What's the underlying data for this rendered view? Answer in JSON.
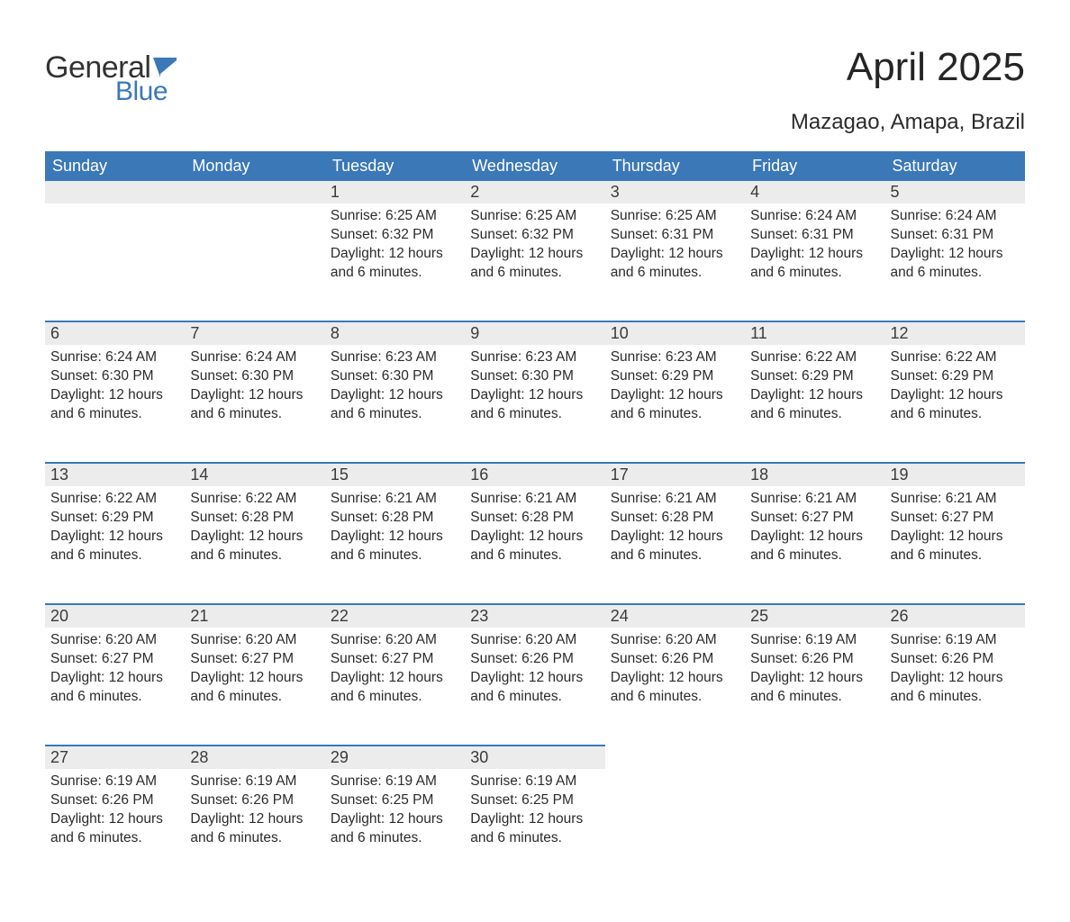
{
  "logo": {
    "word1": "General",
    "word2": "Blue",
    "flag_color": "#3b78b8",
    "word1_color": "#333333",
    "word2_color": "#3b78b8"
  },
  "title": "April 2025",
  "location": "Mazagao, Amapa, Brazil",
  "colors": {
    "header_bg": "#3b78b8",
    "header_text": "#ffffff",
    "daynum_bg": "#ececec",
    "border_top": "#3b78b8",
    "body_text": "#2b2b2b",
    "page_bg": "#ffffff"
  },
  "weekdays": [
    "Sunday",
    "Monday",
    "Tuesday",
    "Wednesday",
    "Thursday",
    "Friday",
    "Saturday"
  ],
  "weeks": [
    [
      {
        "blank": true
      },
      {
        "blank": true
      },
      {
        "day": "1",
        "sunrise": "Sunrise: 6:25 AM",
        "sunset": "Sunset: 6:32 PM",
        "daylight1": "Daylight: 12 hours",
        "daylight2": "and 6 minutes."
      },
      {
        "day": "2",
        "sunrise": "Sunrise: 6:25 AM",
        "sunset": "Sunset: 6:32 PM",
        "daylight1": "Daylight: 12 hours",
        "daylight2": "and 6 minutes."
      },
      {
        "day": "3",
        "sunrise": "Sunrise: 6:25 AM",
        "sunset": "Sunset: 6:31 PM",
        "daylight1": "Daylight: 12 hours",
        "daylight2": "and 6 minutes."
      },
      {
        "day": "4",
        "sunrise": "Sunrise: 6:24 AM",
        "sunset": "Sunset: 6:31 PM",
        "daylight1": "Daylight: 12 hours",
        "daylight2": "and 6 minutes."
      },
      {
        "day": "5",
        "sunrise": "Sunrise: 6:24 AM",
        "sunset": "Sunset: 6:31 PM",
        "daylight1": "Daylight: 12 hours",
        "daylight2": "and 6 minutes."
      }
    ],
    [
      {
        "day": "6",
        "sunrise": "Sunrise: 6:24 AM",
        "sunset": "Sunset: 6:30 PM",
        "daylight1": "Daylight: 12 hours",
        "daylight2": "and 6 minutes."
      },
      {
        "day": "7",
        "sunrise": "Sunrise: 6:24 AM",
        "sunset": "Sunset: 6:30 PM",
        "daylight1": "Daylight: 12 hours",
        "daylight2": "and 6 minutes."
      },
      {
        "day": "8",
        "sunrise": "Sunrise: 6:23 AM",
        "sunset": "Sunset: 6:30 PM",
        "daylight1": "Daylight: 12 hours",
        "daylight2": "and 6 minutes."
      },
      {
        "day": "9",
        "sunrise": "Sunrise: 6:23 AM",
        "sunset": "Sunset: 6:30 PM",
        "daylight1": "Daylight: 12 hours",
        "daylight2": "and 6 minutes."
      },
      {
        "day": "10",
        "sunrise": "Sunrise: 6:23 AM",
        "sunset": "Sunset: 6:29 PM",
        "daylight1": "Daylight: 12 hours",
        "daylight2": "and 6 minutes."
      },
      {
        "day": "11",
        "sunrise": "Sunrise: 6:22 AM",
        "sunset": "Sunset: 6:29 PM",
        "daylight1": "Daylight: 12 hours",
        "daylight2": "and 6 minutes."
      },
      {
        "day": "12",
        "sunrise": "Sunrise: 6:22 AM",
        "sunset": "Sunset: 6:29 PM",
        "daylight1": "Daylight: 12 hours",
        "daylight2": "and 6 minutes."
      }
    ],
    [
      {
        "day": "13",
        "sunrise": "Sunrise: 6:22 AM",
        "sunset": "Sunset: 6:29 PM",
        "daylight1": "Daylight: 12 hours",
        "daylight2": "and 6 minutes."
      },
      {
        "day": "14",
        "sunrise": "Sunrise: 6:22 AM",
        "sunset": "Sunset: 6:28 PM",
        "daylight1": "Daylight: 12 hours",
        "daylight2": "and 6 minutes."
      },
      {
        "day": "15",
        "sunrise": "Sunrise: 6:21 AM",
        "sunset": "Sunset: 6:28 PM",
        "daylight1": "Daylight: 12 hours",
        "daylight2": "and 6 minutes."
      },
      {
        "day": "16",
        "sunrise": "Sunrise: 6:21 AM",
        "sunset": "Sunset: 6:28 PM",
        "daylight1": "Daylight: 12 hours",
        "daylight2": "and 6 minutes."
      },
      {
        "day": "17",
        "sunrise": "Sunrise: 6:21 AM",
        "sunset": "Sunset: 6:28 PM",
        "daylight1": "Daylight: 12 hours",
        "daylight2": "and 6 minutes."
      },
      {
        "day": "18",
        "sunrise": "Sunrise: 6:21 AM",
        "sunset": "Sunset: 6:27 PM",
        "daylight1": "Daylight: 12 hours",
        "daylight2": "and 6 minutes."
      },
      {
        "day": "19",
        "sunrise": "Sunrise: 6:21 AM",
        "sunset": "Sunset: 6:27 PM",
        "daylight1": "Daylight: 12 hours",
        "daylight2": "and 6 minutes."
      }
    ],
    [
      {
        "day": "20",
        "sunrise": "Sunrise: 6:20 AM",
        "sunset": "Sunset: 6:27 PM",
        "daylight1": "Daylight: 12 hours",
        "daylight2": "and 6 minutes."
      },
      {
        "day": "21",
        "sunrise": "Sunrise: 6:20 AM",
        "sunset": "Sunset: 6:27 PM",
        "daylight1": "Daylight: 12 hours",
        "daylight2": "and 6 minutes."
      },
      {
        "day": "22",
        "sunrise": "Sunrise: 6:20 AM",
        "sunset": "Sunset: 6:27 PM",
        "daylight1": "Daylight: 12 hours",
        "daylight2": "and 6 minutes."
      },
      {
        "day": "23",
        "sunrise": "Sunrise: 6:20 AM",
        "sunset": "Sunset: 6:26 PM",
        "daylight1": "Daylight: 12 hours",
        "daylight2": "and 6 minutes."
      },
      {
        "day": "24",
        "sunrise": "Sunrise: 6:20 AM",
        "sunset": "Sunset: 6:26 PM",
        "daylight1": "Daylight: 12 hours",
        "daylight2": "and 6 minutes."
      },
      {
        "day": "25",
        "sunrise": "Sunrise: 6:19 AM",
        "sunset": "Sunset: 6:26 PM",
        "daylight1": "Daylight: 12 hours",
        "daylight2": "and 6 minutes."
      },
      {
        "day": "26",
        "sunrise": "Sunrise: 6:19 AM",
        "sunset": "Sunset: 6:26 PM",
        "daylight1": "Daylight: 12 hours",
        "daylight2": "and 6 minutes."
      }
    ],
    [
      {
        "day": "27",
        "sunrise": "Sunrise: 6:19 AM",
        "sunset": "Sunset: 6:26 PM",
        "daylight1": "Daylight: 12 hours",
        "daylight2": "and 6 minutes."
      },
      {
        "day": "28",
        "sunrise": "Sunrise: 6:19 AM",
        "sunset": "Sunset: 6:26 PM",
        "daylight1": "Daylight: 12 hours",
        "daylight2": "and 6 minutes."
      },
      {
        "day": "29",
        "sunrise": "Sunrise: 6:19 AM",
        "sunset": "Sunset: 6:25 PM",
        "daylight1": "Daylight: 12 hours",
        "daylight2": "and 6 minutes."
      },
      {
        "day": "30",
        "sunrise": "Sunrise: 6:19 AM",
        "sunset": "Sunset: 6:25 PM",
        "daylight1": "Daylight: 12 hours",
        "daylight2": "and 6 minutes."
      },
      {
        "blank": true
      },
      {
        "blank": true
      },
      {
        "blank": true
      }
    ]
  ]
}
